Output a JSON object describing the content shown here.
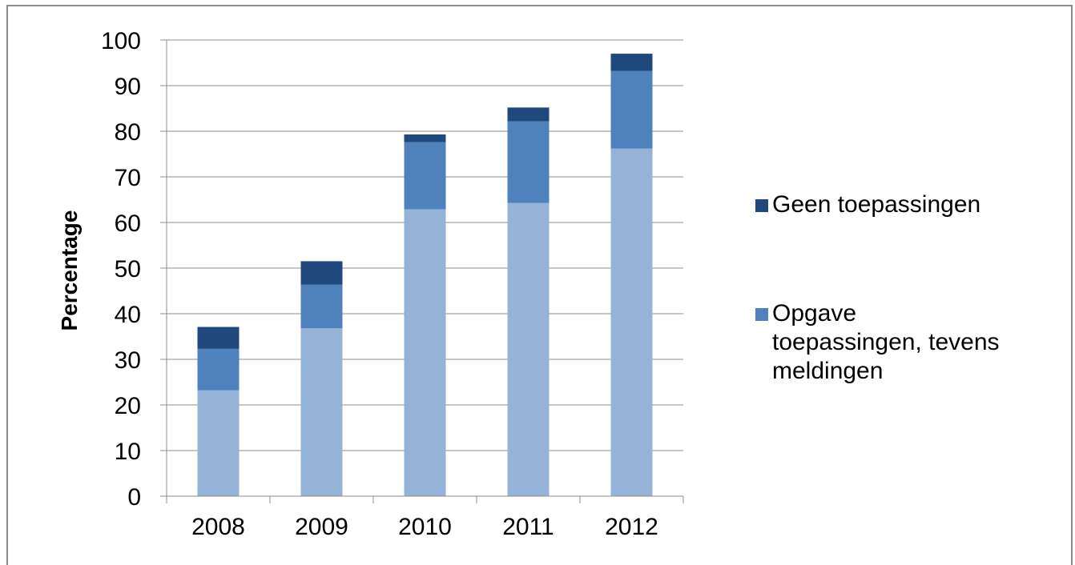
{
  "chart_data": {
    "type": "bar",
    "stacked": true,
    "categories": [
      "2008",
      "2009",
      "2010",
      "2011",
      "2012"
    ],
    "ylabel": "Percentage",
    "xlabel": "",
    "ylim": [
      0,
      100
    ],
    "yticks": [
      0,
      10,
      20,
      30,
      40,
      50,
      60,
      70,
      80,
      90,
      100
    ],
    "grid": true,
    "legend_position": "right",
    "series": [
      {
        "values": [
          23.2,
          36.8,
          62.9,
          64.3,
          76.2
        ],
        "color": "#95b3d7"
      },
      {
        "name": "Opgave toepassingen, tevens meldingen",
        "legend_lines": [
          "Opgave",
          "toepassingen, tevens",
          "meldingen"
        ],
        "values": [
          9.1,
          9.6,
          14.7,
          17.9,
          17.0
        ],
        "color": "#4f81bd"
      },
      {
        "name": "Geen toepassingen",
        "legend_lines": [
          "Geen toepassingen"
        ],
        "values": [
          4.8,
          5.1,
          1.7,
          3.0,
          3.8
        ],
        "color": "#1f497d"
      }
    ]
  }
}
